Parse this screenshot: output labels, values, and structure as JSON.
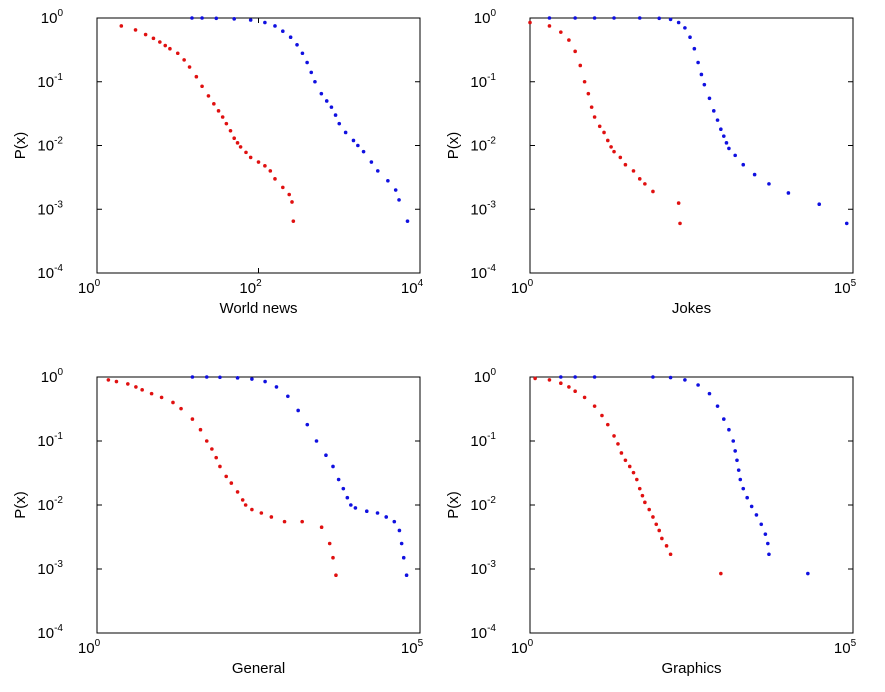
{
  "colors": {
    "series1": "#e01010",
    "series2": "#1010e0",
    "axes": "#000000",
    "background": "#ffffff"
  },
  "chart_data": [
    {
      "type": "scatter",
      "xlabel": "World news",
      "ylabel": "P(x)",
      "xscale": "log",
      "yscale": "log",
      "xlim": [
        1,
        10000
      ],
      "ylim": [
        0.0001,
        1
      ],
      "x_ticks": [
        {
          "base": "10",
          "exp": "0",
          "value": 1
        },
        {
          "base": "10",
          "exp": "2",
          "value": 100
        },
        {
          "base": "10",
          "exp": "4",
          "value": 10000
        }
      ],
      "y_ticks": [
        {
          "base": "10",
          "exp": "0",
          "value": 1
        },
        {
          "base": "10",
          "exp": "-1",
          "value": 0.1
        },
        {
          "base": "10",
          "exp": "-2",
          "value": 0.01
        },
        {
          "base": "10",
          "exp": "-3",
          "value": 0.001
        },
        {
          "base": "10",
          "exp": "-4",
          "value": 0.0001
        }
      ],
      "grid": false,
      "series": [
        {
          "color": "#e01010",
          "points": [
            [
              2,
              0.75
            ],
            [
              3,
              0.65
            ],
            [
              4,
              0.55
            ],
            [
              5,
              0.48
            ],
            [
              6,
              0.42
            ],
            [
              7,
              0.37
            ],
            [
              8,
              0.33
            ],
            [
              10,
              0.28
            ],
            [
              12,
              0.22
            ],
            [
              14,
              0.17
            ],
            [
              17,
              0.12
            ],
            [
              20,
              0.085
            ],
            [
              24,
              0.06
            ],
            [
              28,
              0.045
            ],
            [
              32,
              0.035
            ],
            [
              36,
              0.028
            ],
            [
              40,
              0.022
            ],
            [
              45,
              0.017
            ],
            [
              50,
              0.013
            ],
            [
              55,
              0.011
            ],
            [
              60,
              0.0095
            ],
            [
              70,
              0.0078
            ],
            [
              80,
              0.0065
            ],
            [
              100,
              0.0055
            ],
            [
              120,
              0.0048
            ],
            [
              140,
              0.004
            ],
            [
              160,
              0.003
            ],
            [
              200,
              0.0022
            ],
            [
              240,
              0.0017
            ],
            [
              260,
              0.0013
            ],
            [
              270,
              0.00065
            ]
          ]
        },
        {
          "color": "#1010e0",
          "points": [
            [
              15,
              1
            ],
            [
              20,
              1
            ],
            [
              30,
              0.99
            ],
            [
              50,
              0.97
            ],
            [
              80,
              0.93
            ],
            [
              120,
              0.85
            ],
            [
              160,
              0.75
            ],
            [
              200,
              0.62
            ],
            [
              250,
              0.5
            ],
            [
              300,
              0.38
            ],
            [
              350,
              0.28
            ],
            [
              400,
              0.2
            ],
            [
              450,
              0.14
            ],
            [
              500,
              0.1
            ],
            [
              600,
              0.065
            ],
            [
              700,
              0.05
            ],
            [
              800,
              0.04
            ],
            [
              900,
              0.03
            ],
            [
              1000,
              0.022
            ],
            [
              1200,
              0.016
            ],
            [
              1500,
              0.012
            ],
            [
              1700,
              0.01
            ],
            [
              2000,
              0.008
            ],
            [
              2500,
              0.0055
            ],
            [
              3000,
              0.004
            ],
            [
              4000,
              0.0028
            ],
            [
              5000,
              0.002
            ],
            [
              5500,
              0.0014
            ],
            [
              7000,
              0.00065
            ]
          ]
        }
      ]
    },
    {
      "type": "scatter",
      "xlabel": "Jokes",
      "ylabel": "P(x)",
      "xscale": "log",
      "yscale": "log",
      "xlim": [
        1,
        100000
      ],
      "ylim": [
        0.0001,
        1
      ],
      "x_ticks": [
        {
          "base": "10",
          "exp": "0",
          "value": 1
        },
        {
          "base": "10",
          "exp": "5",
          "value": 100000
        }
      ],
      "y_ticks": [
        {
          "base": "10",
          "exp": "0",
          "value": 1
        },
        {
          "base": "10",
          "exp": "-1",
          "value": 0.1
        },
        {
          "base": "10",
          "exp": "-2",
          "value": 0.01
        },
        {
          "base": "10",
          "exp": "-3",
          "value": 0.001
        },
        {
          "base": "10",
          "exp": "-4",
          "value": 0.0001
        }
      ],
      "grid": false,
      "series": [
        {
          "color": "#e01010",
          "points": [
            [
              1,
              0.85
            ],
            [
              2,
              0.75
            ],
            [
              3,
              0.6
            ],
            [
              4,
              0.45
            ],
            [
              5,
              0.3
            ],
            [
              6,
              0.18
            ],
            [
              7,
              0.1
            ],
            [
              8,
              0.065
            ],
            [
              9,
              0.04
            ],
            [
              10,
              0.028
            ],
            [
              12,
              0.02
            ],
            [
              14,
              0.016
            ],
            [
              16,
              0.012
            ],
            [
              18,
              0.0095
            ],
            [
              20,
              0.008
            ],
            [
              25,
              0.0065
            ],
            [
              30,
              0.005
            ],
            [
              40,
              0.004
            ],
            [
              50,
              0.003
            ],
            [
              60,
              0.0025
            ],
            [
              80,
              0.0019
            ],
            [
              200,
              0.00125
            ],
            [
              210,
              0.0006
            ]
          ]
        },
        {
          "color": "#1010e0",
          "points": [
            [
              2,
              1
            ],
            [
              5,
              1
            ],
            [
              10,
              1
            ],
            [
              20,
              1
            ],
            [
              50,
              1
            ],
            [
              100,
              0.99
            ],
            [
              150,
              0.95
            ],
            [
              200,
              0.85
            ],
            [
              250,
              0.7
            ],
            [
              300,
              0.5
            ],
            [
              350,
              0.33
            ],
            [
              400,
              0.2
            ],
            [
              450,
              0.13
            ],
            [
              500,
              0.09
            ],
            [
              600,
              0.055
            ],
            [
              700,
              0.035
            ],
            [
              800,
              0.025
            ],
            [
              900,
              0.018
            ],
            [
              1000,
              0.014
            ],
            [
              1100,
              0.011
            ],
            [
              1200,
              0.009
            ],
            [
              1500,
              0.007
            ],
            [
              2000,
              0.005
            ],
            [
              3000,
              0.0035
            ],
            [
              5000,
              0.0025
            ],
            [
              10000,
              0.0018
            ],
            [
              30000,
              0.0012
            ],
            [
              80000,
              0.0006
            ]
          ]
        }
      ]
    },
    {
      "type": "scatter",
      "xlabel": "General",
      "ylabel": "P(x)",
      "xscale": "log",
      "yscale": "log",
      "xlim": [
        1,
        100000
      ],
      "ylim": [
        0.0001,
        1
      ],
      "x_ticks": [
        {
          "base": "10",
          "exp": "0",
          "value": 1
        },
        {
          "base": "10",
          "exp": "5",
          "value": 100000
        }
      ],
      "y_ticks": [
        {
          "base": "10",
          "exp": "0",
          "value": 1
        },
        {
          "base": "10",
          "exp": "-1",
          "value": 0.1
        },
        {
          "base": "10",
          "exp": "-2",
          "value": 0.01
        },
        {
          "base": "10",
          "exp": "-3",
          "value": 0.001
        },
        {
          "base": "10",
          "exp": "-4",
          "value": 0.0001
        }
      ],
      "grid": false,
      "series": [
        {
          "color": "#e01010",
          "points": [
            [
              1.5,
              0.9
            ],
            [
              2,
              0.85
            ],
            [
              3,
              0.78
            ],
            [
              4,
              0.7
            ],
            [
              5,
              0.63
            ],
            [
              7,
              0.55
            ],
            [
              10,
              0.48
            ],
            [
              15,
              0.4
            ],
            [
              20,
              0.32
            ],
            [
              30,
              0.22
            ],
            [
              40,
              0.15
            ],
            [
              50,
              0.1
            ],
            [
              60,
              0.075
            ],
            [
              70,
              0.055
            ],
            [
              80,
              0.04
            ],
            [
              100,
              0.028
            ],
            [
              120,
              0.022
            ],
            [
              150,
              0.016
            ],
            [
              180,
              0.012
            ],
            [
              200,
              0.01
            ],
            [
              250,
              0.0085
            ],
            [
              350,
              0.0075
            ],
            [
              500,
              0.0065
            ],
            [
              800,
              0.0055
            ],
            [
              1500,
              0.0055
            ],
            [
              3000,
              0.0045
            ],
            [
              4000,
              0.0025
            ],
            [
              4500,
              0.0015
            ],
            [
              5000,
              0.0008
            ]
          ]
        },
        {
          "color": "#1010e0",
          "points": [
            [
              30,
              1
            ],
            [
              50,
              1
            ],
            [
              80,
              0.99
            ],
            [
              150,
              0.97
            ],
            [
              250,
              0.93
            ],
            [
              400,
              0.85
            ],
            [
              600,
              0.7
            ],
            [
              900,
              0.5
            ],
            [
              1300,
              0.3
            ],
            [
              1800,
              0.18
            ],
            [
              2500,
              0.1
            ],
            [
              3500,
              0.06
            ],
            [
              4500,
              0.04
            ],
            [
              5500,
              0.025
            ],
            [
              6500,
              0.018
            ],
            [
              7500,
              0.013
            ],
            [
              8500,
              0.01
            ],
            [
              10000,
              0.009
            ],
            [
              15000,
              0.008
            ],
            [
              22000,
              0.0075
            ],
            [
              30000,
              0.0065
            ],
            [
              40000,
              0.0055
            ],
            [
              48000,
              0.004
            ],
            [
              52000,
              0.0025
            ],
            [
              56000,
              0.0015
            ],
            [
              62000,
              0.0008
            ]
          ]
        }
      ]
    },
    {
      "type": "scatter",
      "xlabel": "Graphics",
      "ylabel": "P(x)",
      "xscale": "log",
      "yscale": "log",
      "xlim": [
        1,
        100000
      ],
      "ylim": [
        0.0001,
        1
      ],
      "x_ticks": [
        {
          "base": "10",
          "exp": "0",
          "value": 1
        },
        {
          "base": "10",
          "exp": "5",
          "value": 100000
        }
      ],
      "y_ticks": [
        {
          "base": "10",
          "exp": "0",
          "value": 1
        },
        {
          "base": "10",
          "exp": "-1",
          "value": 0.1
        },
        {
          "base": "10",
          "exp": "-2",
          "value": 0.01
        },
        {
          "base": "10",
          "exp": "-3",
          "value": 0.001
        },
        {
          "base": "10",
          "exp": "-4",
          "value": 0.0001
        }
      ],
      "grid": false,
      "series": [
        {
          "color": "#e01010",
          "points": [
            [
              1.2,
              0.95
            ],
            [
              2,
              0.9
            ],
            [
              3,
              0.8
            ],
            [
              4,
              0.7
            ],
            [
              5,
              0.6
            ],
            [
              7,
              0.48
            ],
            [
              10,
              0.35
            ],
            [
              13,
              0.25
            ],
            [
              16,
              0.18
            ],
            [
              20,
              0.12
            ],
            [
              23,
              0.09
            ],
            [
              26,
              0.065
            ],
            [
              30,
              0.05
            ],
            [
              35,
              0.04
            ],
            [
              40,
              0.032
            ],
            [
              45,
              0.025
            ],
            [
              50,
              0.018
            ],
            [
              55,
              0.014
            ],
            [
              60,
              0.011
            ],
            [
              70,
              0.0085
            ],
            [
              80,
              0.0065
            ],
            [
              90,
              0.005
            ],
            [
              100,
              0.004
            ],
            [
              110,
              0.003
            ],
            [
              130,
              0.0023
            ],
            [
              150,
              0.0017
            ],
            [
              900,
              0.00085
            ]
          ]
        },
        {
          "color": "#1010e0",
          "points": [
            [
              3,
              1
            ],
            [
              5,
              1
            ],
            [
              10,
              1
            ],
            [
              80,
              1
            ],
            [
              150,
              0.98
            ],
            [
              250,
              0.9
            ],
            [
              400,
              0.75
            ],
            [
              600,
              0.55
            ],
            [
              800,
              0.35
            ],
            [
              1000,
              0.22
            ],
            [
              1200,
              0.15
            ],
            [
              1400,
              0.1
            ],
            [
              1500,
              0.07
            ],
            [
              1600,
              0.05
            ],
            [
              1700,
              0.035
            ],
            [
              1800,
              0.025
            ],
            [
              2000,
              0.018
            ],
            [
              2300,
              0.013
            ],
            [
              2700,
              0.0095
            ],
            [
              3200,
              0.007
            ],
            [
              3800,
              0.005
            ],
            [
              4400,
              0.0035
            ],
            [
              4800,
              0.0025
            ],
            [
              5000,
              0.0017
            ],
            [
              20000,
              0.00085
            ]
          ]
        }
      ]
    }
  ]
}
